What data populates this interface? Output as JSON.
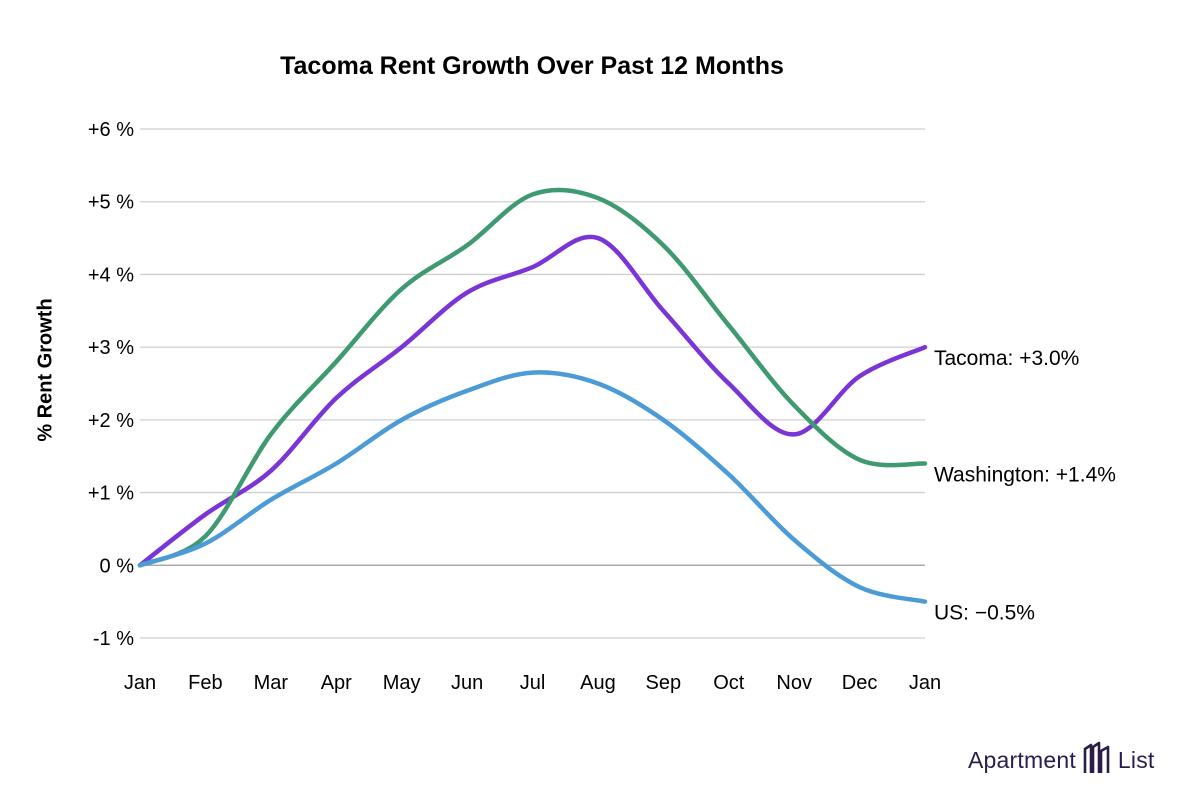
{
  "chart_data": {
    "type": "line",
    "title": "Tacoma Rent Growth Over Past 12 Months",
    "ylabel": "% Rent Growth",
    "xlabel": "",
    "categories": [
      "Jan",
      "Feb",
      "Mar",
      "Apr",
      "May",
      "Jun",
      "Jul",
      "Aug",
      "Sep",
      "Oct",
      "Nov",
      "Dec",
      "Jan"
    ],
    "y_ticks": [
      {
        "value": 6,
        "label": "+6 %"
      },
      {
        "value": 5,
        "label": "+5 %"
      },
      {
        "value": 4,
        "label": "+4 %"
      },
      {
        "value": 3,
        "label": "+3 %"
      },
      {
        "value": 2,
        "label": "+2 %"
      },
      {
        "value": 1,
        "label": "+1 %"
      },
      {
        "value": 0,
        "label": "0 %"
      },
      {
        "value": -1,
        "label": "-1 %"
      }
    ],
    "ylim": [
      -1,
      6
    ],
    "grid": true,
    "legend": "end-of-line labels",
    "series": [
      {
        "name": "Tacoma",
        "color": "#7b35d6",
        "end_label": "Tacoma: +3.0%",
        "values": [
          0,
          0.7,
          1.3,
          2.3,
          3.0,
          3.75,
          4.1,
          4.5,
          3.5,
          2.5,
          1.8,
          2.6,
          3.0
        ]
      },
      {
        "name": "Washington",
        "color": "#3f9a72",
        "end_label": "Washington: +1.4%",
        "values": [
          0,
          0.4,
          1.8,
          2.8,
          3.8,
          4.4,
          5.1,
          5.05,
          4.4,
          3.3,
          2.2,
          1.45,
          1.4
        ]
      },
      {
        "name": "US",
        "color": "#4a9bd6",
        "end_label": "US: −0.5%",
        "values": [
          0,
          0.3,
          0.9,
          1.4,
          2.0,
          2.4,
          2.65,
          2.5,
          2.0,
          1.25,
          0.35,
          -0.3,
          -0.5
        ]
      }
    ]
  },
  "brand": {
    "left": "Apartment",
    "right": "List",
    "icon": "apartment-list-logo-icon"
  }
}
